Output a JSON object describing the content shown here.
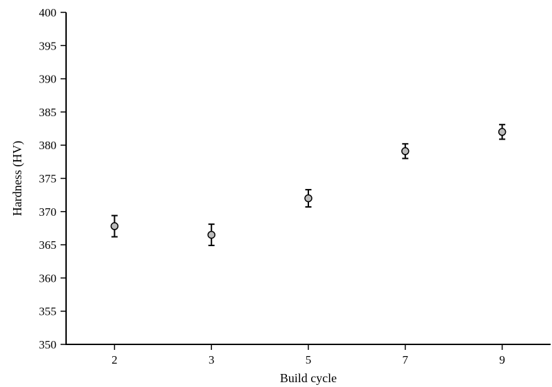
{
  "chart_data": {
    "type": "scatter",
    "title": "",
    "xlabel": "Build cycle",
    "ylabel": "Hardness (HV)",
    "categories": [
      "2",
      "3",
      "5",
      "7",
      "9"
    ],
    "ylim": [
      350,
      400
    ],
    "yticks": [
      350,
      355,
      360,
      365,
      370,
      375,
      380,
      385,
      390,
      395,
      400
    ],
    "grid": false,
    "legend": "none",
    "series": [
      {
        "values": [
          367.8,
          366.5,
          372.0,
          379.1,
          382.0
        ],
        "error": [
          1.6,
          1.6,
          1.3,
          1.1,
          1.1
        ]
      }
    ],
    "marker_color": "#bdbdbd",
    "marker_edge_color": "#000000"
  }
}
